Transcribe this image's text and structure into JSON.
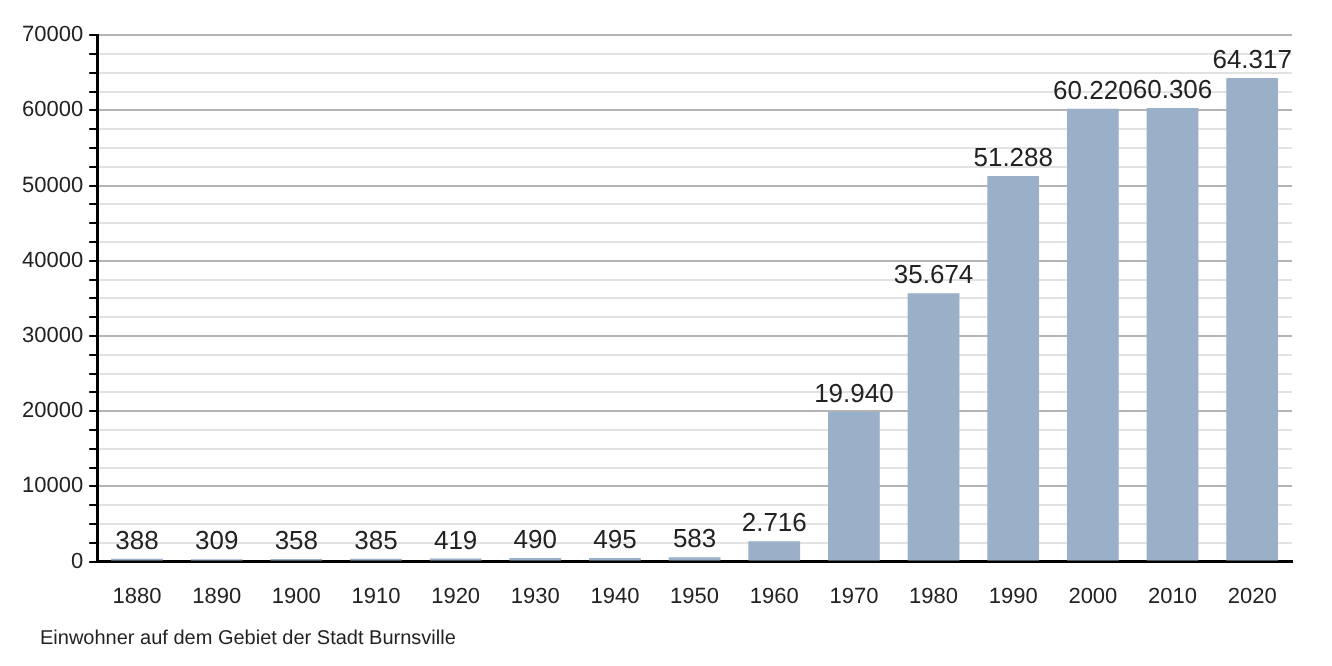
{
  "chart_data": {
    "type": "bar",
    "categories": [
      "1880",
      "1890",
      "1900",
      "1910",
      "1920",
      "1930",
      "1940",
      "1950",
      "1960",
      "1970",
      "1980",
      "1990",
      "2000",
      "2010",
      "2020"
    ],
    "values": [
      388,
      309,
      358,
      385,
      419,
      490,
      495,
      583,
      2716,
      19940,
      35674,
      51288,
      60220,
      60306,
      64317
    ],
    "value_labels": [
      "388",
      "309",
      "358",
      "385",
      "419",
      "490",
      "495",
      "583",
      "2.716",
      "19.940",
      "35.674",
      "51.288",
      "60.220",
      "60.306",
      "64.317"
    ],
    "color": "#9ab0c9",
    "ylim": [
      0,
      70000
    ],
    "yticks": [
      0,
      {
        "value": 2500,
        "label": null
      },
      {
        "value": 5000,
        "label": null
      },
      {
        "value": 7500,
        "label": null
      },
      10000,
      {
        "value": 12500,
        "label": null
      },
      {
        "value": 15000,
        "label": null
      },
      {
        "value": 17500,
        "label": null
      },
      20000,
      {
        "value": 22500,
        "label": null
      },
      {
        "value": 25000,
        "label": null
      },
      {
        "value": 27500,
        "label": null
      },
      30000,
      {
        "value": 32500,
        "label": null
      },
      {
        "value": 35000,
        "label": null
      },
      {
        "value": 37500,
        "label": null
      },
      40000,
      {
        "value": 42500,
        "label": null
      },
      {
        "value": 45000,
        "label": null
      },
      {
        "value": 47500,
        "label": null
      },
      50000,
      {
        "value": 52500,
        "label": null
      },
      {
        "value": 55000,
        "label": null
      },
      {
        "value": 57500,
        "label": null
      },
      60000,
      {
        "value": 62500,
        "label": null
      },
      {
        "value": 65000,
        "label": null
      },
      {
        "value": 67500,
        "label": null
      },
      70000
    ],
    "grid": "y",
    "annotations": [
      "Einwohner auf dem Gebiet der Stadt Burnsville"
    ]
  }
}
